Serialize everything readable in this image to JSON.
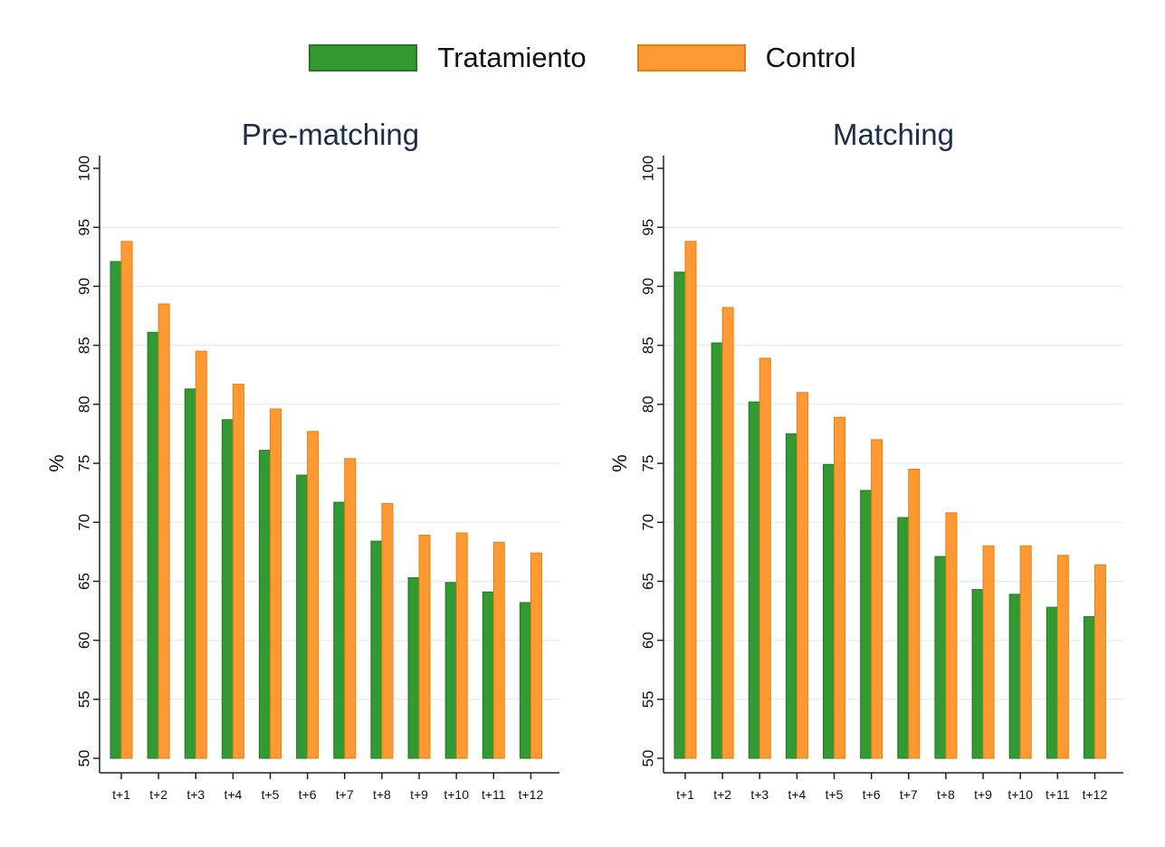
{
  "legend": {
    "treatment": "Tratamiento",
    "control": "Control"
  },
  "colors": {
    "treatment_fill": "#339933",
    "treatment_edge": "#1f7a1f",
    "control_fill": "#ff9933",
    "control_edge": "#e67e10",
    "grid": "#e8eff2",
    "axis": "#222222",
    "title": "#1c2d4a"
  },
  "chart_data": [
    {
      "type": "bar",
      "title": "Pre-matching",
      "ylabel": "%",
      "ylim": [
        50,
        100
      ],
      "yticks": [
        50,
        55,
        60,
        65,
        70,
        75,
        80,
        85,
        90,
        95,
        100
      ],
      "grid": true,
      "categories": [
        "t+1",
        "t+2",
        "t+3",
        "t+4",
        "t+5",
        "t+6",
        "t+7",
        "t+8",
        "t+9",
        "t+10",
        "t+11",
        "t+12"
      ],
      "series": [
        {
          "name": "Tratamiento",
          "values": [
            92.1,
            86.1,
            81.3,
            78.7,
            76.1,
            74.0,
            71.7,
            68.4,
            65.3,
            64.9,
            64.1,
            63.2
          ]
        },
        {
          "name": "Control",
          "values": [
            93.8,
            88.5,
            84.5,
            81.7,
            79.6,
            77.7,
            75.4,
            71.6,
            68.9,
            69.1,
            68.3,
            67.4
          ]
        }
      ]
    },
    {
      "type": "bar",
      "title": "Matching",
      "ylabel": "%",
      "ylim": [
        50,
        100
      ],
      "yticks": [
        50,
        55,
        60,
        65,
        70,
        75,
        80,
        85,
        90,
        95,
        100
      ],
      "grid": true,
      "categories": [
        "t+1",
        "t+2",
        "t+3",
        "t+4",
        "t+5",
        "t+6",
        "t+7",
        "t+8",
        "t+9",
        "t+10",
        "t+11",
        "t+12"
      ],
      "series": [
        {
          "name": "Tratamiento",
          "values": [
            91.2,
            85.2,
            80.2,
            77.5,
            74.9,
            72.7,
            70.4,
            67.1,
            64.3,
            63.9,
            62.8,
            62.0
          ]
        },
        {
          "name": "Control",
          "values": [
            93.8,
            88.2,
            83.9,
            81.0,
            78.9,
            77.0,
            74.5,
            70.8,
            68.0,
            68.0,
            67.2,
            66.4
          ]
        }
      ]
    }
  ]
}
